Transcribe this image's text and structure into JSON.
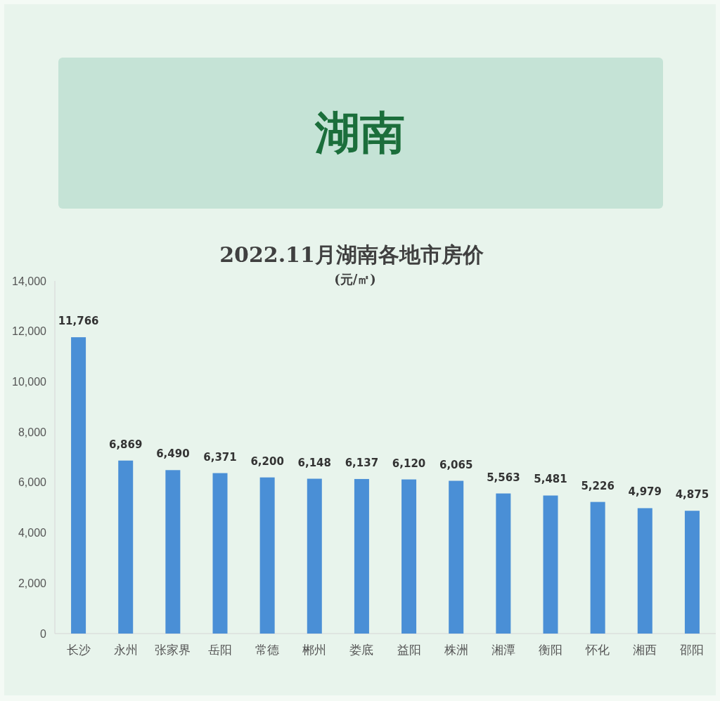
{
  "chart_data": {
    "type": "bar",
    "title": "湖南",
    "subtitle": "2022.11月湖南各地市房价",
    "annotations": [
      "(元/㎡)"
    ],
    "categories": [
      "长沙",
      "永州",
      "张家界",
      "岳阳",
      "常德",
      "郴州",
      "娄底",
      "益阳",
      "株洲",
      "湘潭",
      "衡阳",
      "怀化",
      "湘西",
      "邵阳"
    ],
    "values": [
      11766,
      6869,
      6490,
      6371,
      6200,
      6148,
      6137,
      6120,
      6065,
      5563,
      5481,
      5226,
      4979,
      4875
    ],
    "value_labels": [
      "11,766",
      "6,869",
      "6,490",
      "6,371",
      "6,200",
      "6,148",
      "6,137",
      "6,120",
      "6,065",
      "5,563",
      "5,481",
      "5,226",
      "4,979",
      "4,875"
    ],
    "color": "#4a8fd6",
    "ylim": [
      0,
      14000
    ],
    "yticks": [
      0,
      {
        "value": 2000,
        "label": "2,000"
      },
      {
        "value": 4000,
        "label": "4,000"
      },
      {
        "value": 6000,
        "label": "6,000"
      },
      {
        "value": 8000,
        "label": "8,000"
      },
      {
        "value": 10000,
        "label": "10,000"
      },
      {
        "value": 12000,
        "label": "12,000"
      },
      {
        "value": 14000,
        "label": "14,000"
      }
    ]
  }
}
